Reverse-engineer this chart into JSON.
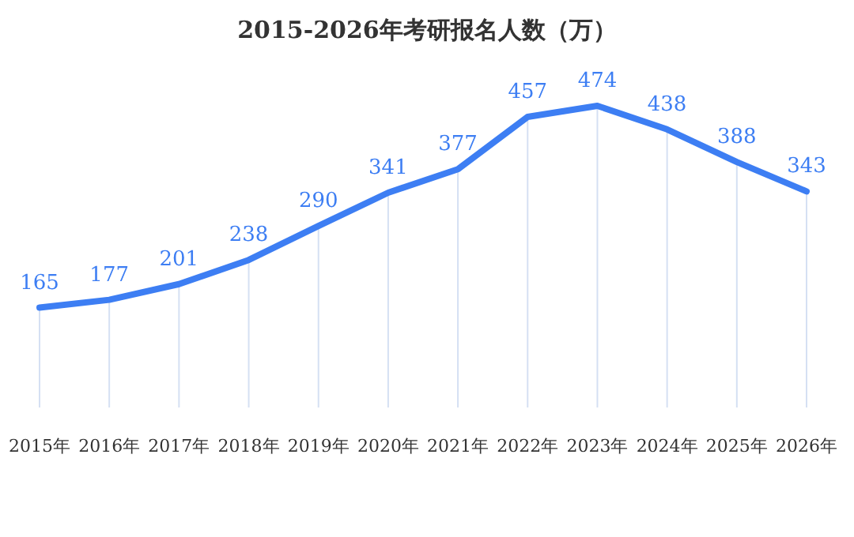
{
  "chart_data": {
    "type": "line",
    "title": "2015-2026年考研报名人数（万）",
    "categories": [
      "2015年",
      "2016年",
      "2017年",
      "2018年",
      "2019年",
      "2020年",
      "2021年",
      "2022年",
      "2023年",
      "2024年",
      "2025年",
      "2026年"
    ],
    "series": [
      {
        "color": "#3d7ef3",
        "values": [
          165,
          177,
          201,
          238,
          290,
          341,
          377,
          457,
          474,
          438,
          388,
          343
        ]
      }
    ],
    "data_labels": true,
    "grid": "x",
    "marker": "none",
    "line_style": "solid"
  }
}
